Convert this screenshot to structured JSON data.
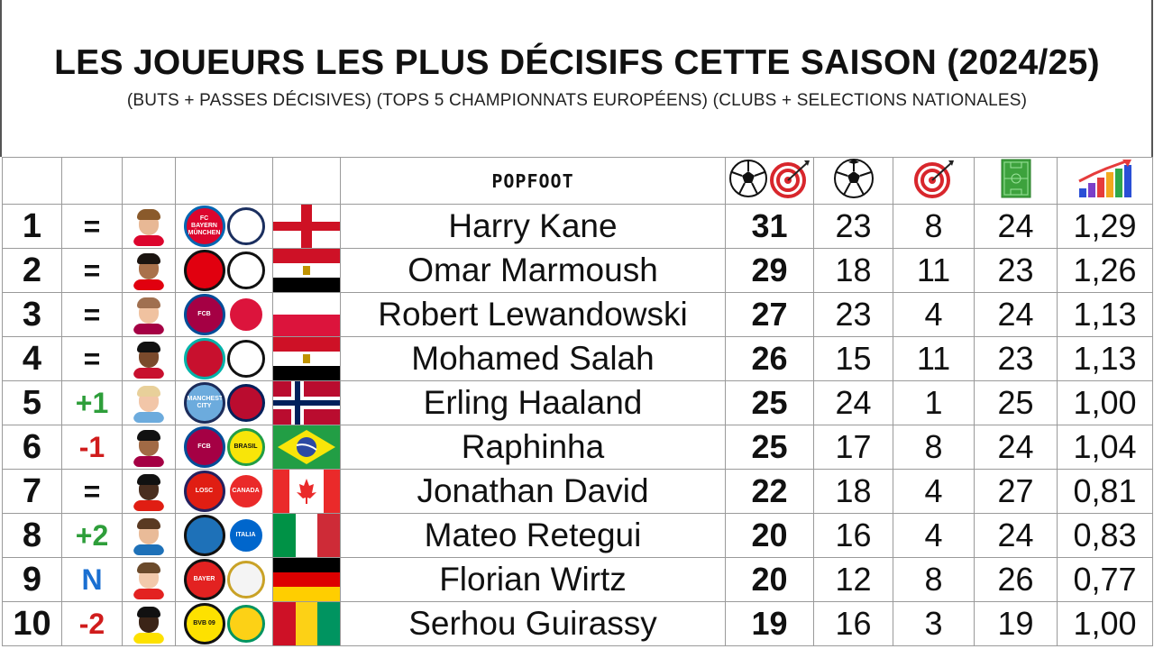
{
  "header": {
    "title": "LES JOUEURS LES PLUS DÉCISIFS CETTE SAISON (2024/25)",
    "subtitle": "(BUTS + PASSES DÉCISIVES) (TOPS 5 CHAMPIONNATS EUROPÉENS) (CLUBS + SELECTIONS NATIONALES)"
  },
  "table_header": {
    "brand": "POPFOOT",
    "icons": [
      "soccer-ball-target-icon",
      "soccer-ball-icon",
      "target-icon",
      "pitch-icon",
      "bar-chart-icon"
    ]
  },
  "colors": {
    "up": "#2e9e3a",
    "down": "#d01c1c",
    "new": "#1a6fd1"
  },
  "players": [
    {
      "rank": "1",
      "change": "=",
      "name": "Harry Kane",
      "total": "31",
      "goals": "23",
      "assists": "8",
      "matches": "24",
      "ratio": "1,29",
      "club": "bayern-munich-crest",
      "nation": "england-crest",
      "flag": "england"
    },
    {
      "rank": "2",
      "change": "=",
      "name": "Omar Marmoush",
      "total": "29",
      "goals": "18",
      "assists": "11",
      "matches": "23",
      "ratio": "1,26",
      "club": "eintracht-frankfurt-crest",
      "nation": "egypt-crest",
      "flag": "egypt"
    },
    {
      "rank": "3",
      "change": "=",
      "name": "Robert Lewandowski",
      "total": "27",
      "goals": "23",
      "assists": "4",
      "matches": "24",
      "ratio": "1,13",
      "club": "fc-barcelona-crest",
      "nation": "poland-crest",
      "flag": "poland"
    },
    {
      "rank": "4",
      "change": "=",
      "name": "Mohamed Salah",
      "total": "26",
      "goals": "15",
      "assists": "11",
      "matches": "23",
      "ratio": "1,13",
      "club": "liverpool-crest",
      "nation": "egypt-crest",
      "flag": "egypt"
    },
    {
      "rank": "5",
      "change": "+1",
      "name": "Erling Haaland",
      "total": "25",
      "goals": "24",
      "assists": "1",
      "matches": "25",
      "ratio": "1,00",
      "club": "manchester-city-crest",
      "nation": "norway-crest",
      "flag": "norway"
    },
    {
      "rank": "6",
      "change": "-1",
      "name": "Raphinha",
      "total": "25",
      "goals": "17",
      "assists": "8",
      "matches": "24",
      "ratio": "1,04",
      "club": "fc-barcelona-crest",
      "nation": "brasil-crest",
      "flag": "brazil"
    },
    {
      "rank": "7",
      "change": "=",
      "name": "Jonathan David",
      "total": "22",
      "goals": "18",
      "assists": "4",
      "matches": "27",
      "ratio": "0,81",
      "club": "losc-crest",
      "nation": "canada-crest",
      "flag": "canada"
    },
    {
      "rank": "8",
      "change": "+2",
      "name": "Mateo Retegui",
      "total": "20",
      "goals": "16",
      "assists": "4",
      "matches": "24",
      "ratio": "0,83",
      "club": "atalanta-crest",
      "nation": "italia-crest",
      "flag": "italy"
    },
    {
      "rank": "9",
      "change": "N",
      "name": "Florian Wirtz",
      "total": "20",
      "goals": "12",
      "assists": "8",
      "matches": "26",
      "ratio": "0,77",
      "club": "bayer-leverkusen-crest",
      "nation": "germany-crest",
      "flag": "germany"
    },
    {
      "rank": "10",
      "change": "-2",
      "name": "Serhou Guirassy",
      "total": "19",
      "goals": "16",
      "assists": "3",
      "matches": "19",
      "ratio": "1,00",
      "club": "bvb-crest",
      "nation": "guinea-crest",
      "flag": "guinea"
    }
  ],
  "badge_text": {
    "bayern": "FC BAYERN MÜNCHEN",
    "barcelona": "FCB",
    "city": "MANCHESTER CITY",
    "losc": "LOSC",
    "canada": "CANADA",
    "italia": "ITALIA",
    "bvb": "BVB 09",
    "brasil": "BRASIL",
    "leverkusen": "BAYER"
  }
}
